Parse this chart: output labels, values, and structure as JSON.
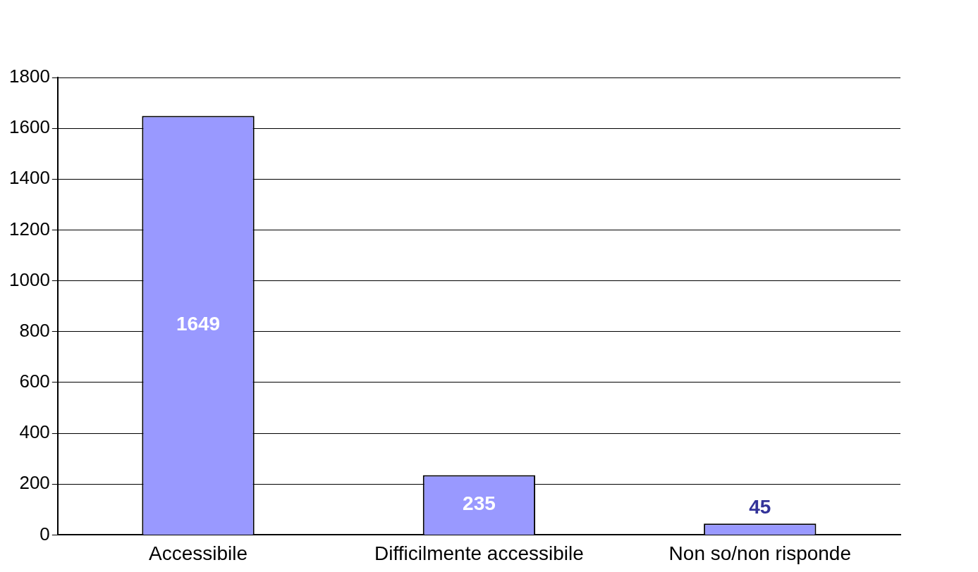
{
  "chart_data": {
    "type": "bar",
    "categories": [
      "Accessibile",
      "Difficilmente accessibile",
      "Non so/non risponde"
    ],
    "values": [
      1649,
      235,
      45
    ],
    "color": "#9999ff",
    "ylim": [
      0,
      1800
    ],
    "yticks": [
      0,
      200,
      400,
      600,
      800,
      1000,
      1200,
      1400,
      1600,
      1800
    ],
    "grid": "y",
    "data_labels": true,
    "legend": false
  }
}
